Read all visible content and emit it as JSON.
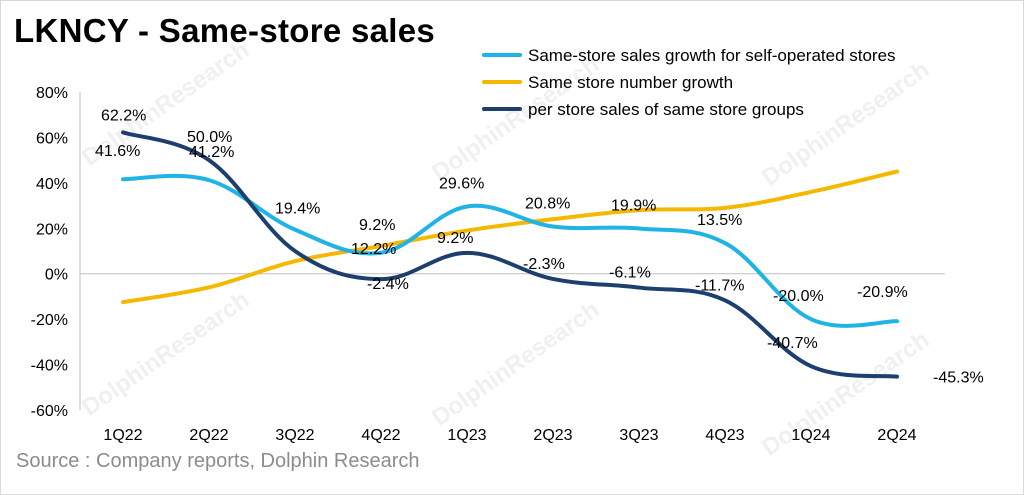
{
  "title": "LKNCY - Same-store sales",
  "source": "Source : Company reports, Dolphin Research",
  "watermark": "DolphinResearch",
  "chart_data": {
    "type": "line",
    "categories": [
      "1Q22",
      "2Q22",
      "3Q22",
      "4Q22",
      "1Q23",
      "2Q23",
      "3Q23",
      "4Q23",
      "1Q24",
      "2Q24"
    ],
    "ylim": [
      -60,
      80
    ],
    "yticks": [
      "-60%",
      "-40%",
      "-20%",
      "0%",
      "20%",
      "40%",
      "60%",
      "80%"
    ],
    "ytick_values": [
      -60,
      -40,
      -20,
      0,
      20,
      40,
      60,
      80
    ],
    "legend_position": "top-right",
    "series": [
      {
        "name": "Same-store sales growth for self-operated stores",
        "color": "#1fb3e6",
        "values": [
          41.6,
          41.2,
          19.4,
          9.2,
          29.6,
          20.8,
          19.9,
          13.5,
          -20.0,
          -20.9
        ],
        "labels": [
          "41.6%",
          "41.2%",
          "19.4%",
          "9.2%",
          "29.6%",
          "20.8%",
          "19.9%",
          "13.5%",
          "-20.0%",
          "-20.9%"
        ]
      },
      {
        "name": "Same store number growth",
        "color": "#f5b800",
        "values": [
          -12.5,
          -6,
          5.5,
          12.2,
          19,
          24,
          28,
          29,
          36,
          45
        ],
        "labels": [
          "",
          "",
          "",
          "12.2%",
          "",
          "",
          "",
          "",
          "",
          ""
        ]
      },
      {
        "name": "per store sales of same store groups",
        "color": "#1c3f6e",
        "values": [
          62.2,
          50.0,
          10,
          -2.4,
          9.2,
          -2.3,
          -6.1,
          -11.7,
          -40.7,
          -45.3
        ],
        "labels": [
          "62.2%",
          "50.0%",
          "",
          "-2.4%",
          "9.2%",
          "-2.3%",
          "-6.1%",
          "-11.7%",
          "-40.7%",
          "-45.3%"
        ]
      }
    ]
  }
}
